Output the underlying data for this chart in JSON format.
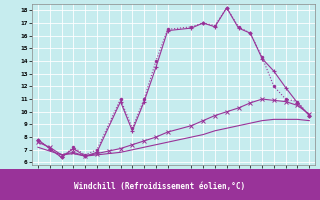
{
  "bg_color": "#c6ecee",
  "line_color": "#993399",
  "xlabel": "Windchill (Refroidissement éolien,°C)",
  "xlabel_bg": "#993399",
  "xmin": -0.5,
  "xmax": 23.5,
  "ymin": 5.8,
  "ymax": 18.5,
  "yticks": [
    6,
    7,
    8,
    9,
    10,
    11,
    12,
    13,
    14,
    15,
    16,
    17,
    18
  ],
  "xticks": [
    0,
    1,
    2,
    3,
    4,
    5,
    6,
    7,
    8,
    9,
    10,
    11,
    13,
    14,
    15,
    16,
    17,
    18,
    19,
    20,
    21,
    22,
    23
  ],
  "c1_x": [
    0,
    1,
    2,
    3,
    4,
    5,
    7,
    8,
    9,
    10,
    11,
    13,
    14,
    15,
    16,
    17,
    18,
    19,
    20,
    21,
    22,
    23
  ],
  "c1_y": [
    7.8,
    7.1,
    6.4,
    7.1,
    6.5,
    6.8,
    10.8,
    8.5,
    10.8,
    13.5,
    16.4,
    16.6,
    17.0,
    16.7,
    18.2,
    16.6,
    16.2,
    14.2,
    13.2,
    11.9,
    10.7,
    9.7
  ],
  "c2_x": [
    0,
    1,
    2,
    3,
    4,
    5,
    7,
    8,
    9,
    10,
    11,
    13,
    14,
    15,
    16,
    17,
    18,
    19,
    20,
    21,
    22,
    23
  ],
  "c2_y": [
    7.8,
    7.1,
    6.4,
    7.2,
    6.6,
    7.0,
    11.0,
    8.7,
    11.0,
    14.0,
    16.5,
    16.7,
    17.0,
    16.8,
    18.2,
    16.7,
    16.2,
    14.3,
    12.0,
    11.0,
    10.8,
    9.7
  ],
  "c3_x": [
    0,
    1,
    2,
    3,
    4,
    5,
    6,
    7,
    8,
    9,
    10,
    11,
    13,
    14,
    15,
    16,
    17,
    18,
    19,
    20,
    21,
    22,
    23
  ],
  "c3_y": [
    7.6,
    7.2,
    6.6,
    6.8,
    6.5,
    6.7,
    6.9,
    7.1,
    7.4,
    7.7,
    8.0,
    8.4,
    8.9,
    9.3,
    9.7,
    10.0,
    10.3,
    10.7,
    11.0,
    10.9,
    10.8,
    10.5,
    9.8
  ],
  "c4_x": [
    0,
    1,
    2,
    3,
    4,
    5,
    6,
    7,
    8,
    9,
    10,
    11,
    13,
    14,
    15,
    16,
    17,
    18,
    19,
    20,
    21,
    22,
    23
  ],
  "c4_y": [
    7.2,
    6.9,
    6.6,
    6.7,
    6.5,
    6.6,
    6.7,
    6.8,
    7.0,
    7.2,
    7.4,
    7.6,
    8.0,
    8.2,
    8.5,
    8.7,
    8.9,
    9.1,
    9.3,
    9.4,
    9.4,
    9.4,
    9.3
  ]
}
